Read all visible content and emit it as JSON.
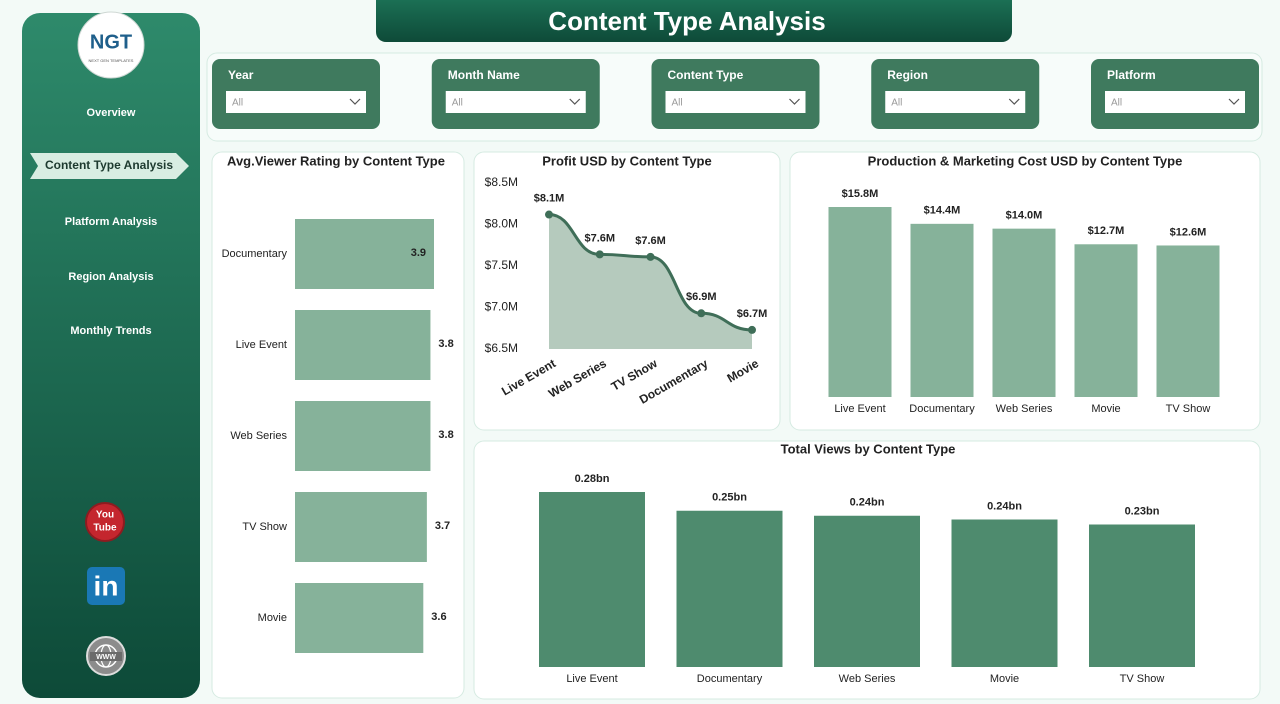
{
  "header": {
    "title": "Content Type Analysis"
  },
  "logo": {
    "text": "NGT",
    "tagline": "NEXT GEN TEMPLATES"
  },
  "nav": {
    "items": [
      "Overview",
      "Content Type Analysis",
      "Platform Analysis",
      "Region Analysis",
      "Monthly Trends"
    ],
    "active": 1
  },
  "social": {
    "youtube": [
      "You",
      "Tube"
    ],
    "linkedin": "in",
    "website": "WWW"
  },
  "filters": [
    {
      "label": "Year",
      "value": "All"
    },
    {
      "label": "Month Name",
      "value": "All"
    },
    {
      "label": "Content Type",
      "value": "All"
    },
    {
      "label": "Region",
      "value": "All"
    },
    {
      "label": "Platform",
      "value": "All"
    }
  ],
  "chart_data": [
    {
      "type": "bar",
      "orientation": "horizontal",
      "title": "Avg.Viewer Rating by Content Type",
      "categories": [
        "Documentary",
        "Live Event",
        "Web Series",
        "TV Show",
        "Movie"
      ],
      "values": [
        3.9,
        3.8,
        3.8,
        3.7,
        3.6
      ],
      "color": "#86b29a"
    },
    {
      "type": "area",
      "title": "Profit USD by Content Type",
      "categories": [
        "Live Event",
        "Web Series",
        "TV Show",
        "Documentary",
        "Movie"
      ],
      "values": [
        8.12,
        7.64,
        7.61,
        6.93,
        6.73
      ],
      "value_labels": [
        "$8.1M",
        "$7.6M",
        "$7.6M",
        "$6.9M",
        "$6.7M"
      ],
      "ylim": [
        6.5,
        8.5
      ],
      "yticks": [
        {
          "value": 6.5,
          "label": "$6.5M"
        },
        {
          "value": 7.0,
          "label": "$7.0M"
        },
        {
          "value": 7.5,
          "label": "$7.5M"
        },
        {
          "value": 8.0,
          "label": "$8.0M"
        },
        {
          "value": 8.5,
          "label": "$8.5M"
        }
      ],
      "color": "#3f6e58",
      "fill": "#b5cabd"
    },
    {
      "type": "bar",
      "orientation": "vertical",
      "title": "Production & Marketing Cost USD by Content Type",
      "categories": [
        "Live Event",
        "Documentary",
        "Web Series",
        "Movie",
        "TV Show"
      ],
      "values": [
        15.8,
        14.4,
        14.0,
        12.7,
        12.6
      ],
      "value_labels": [
        "$15.8M",
        "$14.4M",
        "$14.0M",
        "$12.7M",
        "$12.6M"
      ],
      "color": "#86b29a"
    },
    {
      "type": "bar",
      "orientation": "vertical",
      "title": "Total Views by Content Type",
      "categories": [
        "Live Event",
        "Documentary",
        "Web Series",
        "Movie",
        "TV Show"
      ],
      "values": [
        0.28,
        0.25,
        0.242,
        0.236,
        0.228
      ],
      "value_labels": [
        "0.28bn",
        "0.25bn",
        "0.24bn",
        "0.24bn",
        "0.23bn"
      ],
      "color": "#4e8b6e"
    }
  ]
}
